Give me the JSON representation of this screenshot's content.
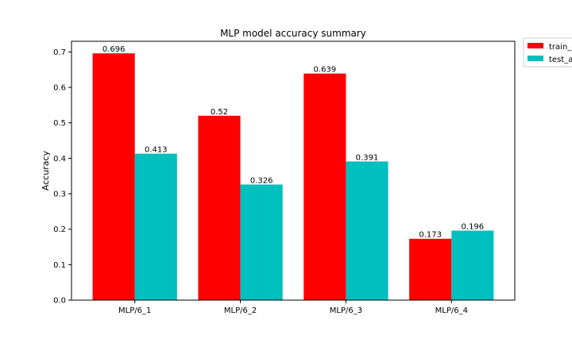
{
  "chart_data": {
    "type": "bar",
    "title": "MLP model accuracy summary",
    "xlabel": "",
    "ylabel": "Accuracy",
    "categories": [
      "MLP/6_1",
      "MLP/6_2",
      "MLP/6_3",
      "MLP/6_4"
    ],
    "series": [
      {
        "name": "train_a",
        "color": "#ff0000",
        "values": [
          0.696,
          0.52,
          0.639,
          0.173
        ],
        "labels": [
          "0.696",
          "0.52",
          "0.639",
          "0.173"
        ]
      },
      {
        "name": "test_a",
        "color": "#00bfbf",
        "values": [
          0.413,
          0.326,
          0.391,
          0.196
        ],
        "labels": [
          "0.413",
          "0.326",
          "0.391",
          "0.196"
        ]
      }
    ],
    "ylim": [
      0,
      0.73
    ],
    "yticks": [
      0.0,
      0.1,
      0.2,
      0.3,
      0.4,
      0.5,
      0.6,
      0.7
    ],
    "ytick_labels": [
      "0.0",
      "0.1",
      "0.2",
      "0.3",
      "0.4",
      "0.5",
      "0.6",
      "0.7"
    ],
    "grid": false,
    "legend_position": "outside top-right"
  }
}
